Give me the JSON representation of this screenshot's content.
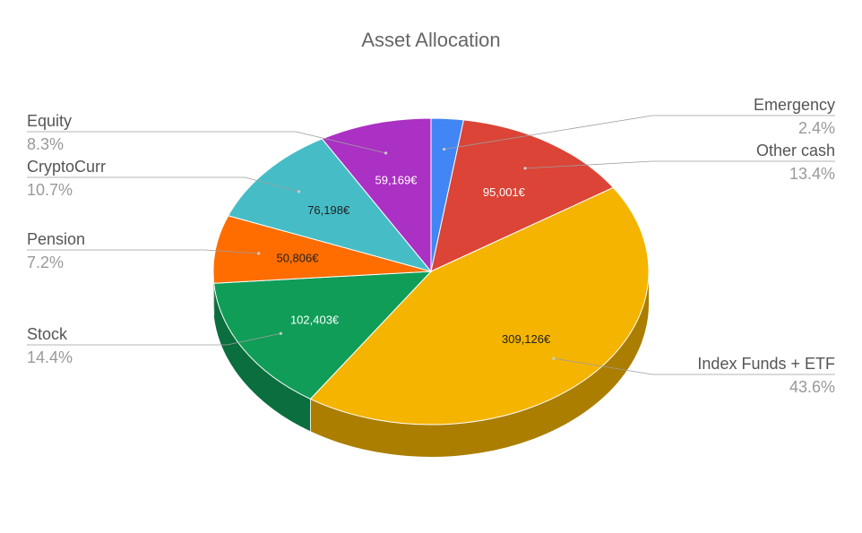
{
  "chart_data": {
    "type": "pie",
    "title": "Asset Allocation",
    "currency_suffix": "€",
    "slices": [
      {
        "name": "Emergency",
        "value": 17000,
        "percent": "2.4%",
        "color": "#4285f4",
        "value_label": ""
      },
      {
        "name": "Other cash",
        "value": 95001,
        "percent": "13.4%",
        "color": "#db4437",
        "value_label": "95,001€"
      },
      {
        "name": "Index Funds + ETF",
        "value": 309126,
        "percent": "43.6%",
        "color": "#f4b400",
        "value_label": "309,126€"
      },
      {
        "name": "Stock",
        "value": 102403,
        "percent": "14.4%",
        "color": "#0f9d58",
        "value_label": "102,403€"
      },
      {
        "name": "Pension",
        "value": 50806,
        "percent": "7.2%",
        "color": "#ff6d01",
        "value_label": "50,806€"
      },
      {
        "name": "CryptoCurr",
        "value": 76198,
        "percent": "10.7%",
        "color": "#46bdc6",
        "value_label": "76,198€"
      },
      {
        "name": "Equity",
        "value": 59169,
        "percent": "8.3%",
        "color": "#ab30c4",
        "value_label": "59,169€"
      }
    ],
    "legend_placement": "outside-labels-with-leader-lines",
    "three_d": true
  }
}
